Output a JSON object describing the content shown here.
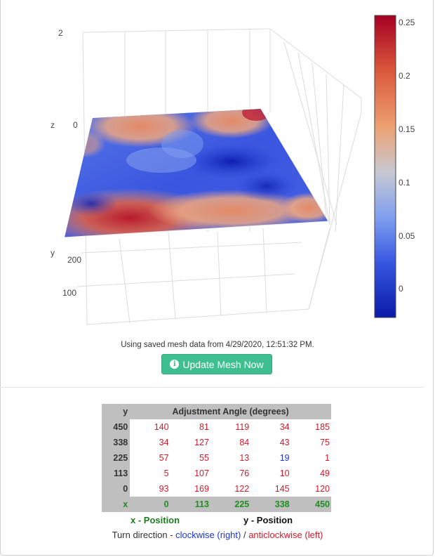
{
  "plot": {
    "z_axis_label": "z",
    "y_axis_label": "y",
    "z_ticks": [
      "2",
      "0"
    ],
    "y_ticks": [
      "200",
      "100"
    ],
    "colorbar_ticks": [
      "0.25",
      "0.2",
      "0.15",
      "0.1",
      "0.05",
      "0"
    ],
    "colorscale": [
      "#0a1ba8",
      "#3656e0",
      "#7f9ff0",
      "#c7c8d2",
      "#eda173",
      "#d9573a",
      "#a50024"
    ]
  },
  "status": {
    "message": "Using saved mesh data from 4/29/2020, 12:51:32 PM."
  },
  "update_button": {
    "label": "Update Mesh Now",
    "icon": "info-circle-icon"
  },
  "table": {
    "y_header": "y",
    "title": "Adjustment Angle (degrees)",
    "rows": [
      {
        "y": "450",
        "cells": [
          {
            "v": "140",
            "dir": "acw"
          },
          {
            "v": "81",
            "dir": "acw"
          },
          {
            "v": "119",
            "dir": "acw"
          },
          {
            "v": "34",
            "dir": "acw"
          },
          {
            "v": "185",
            "dir": "acw"
          }
        ]
      },
      {
        "y": "338",
        "cells": [
          {
            "v": "34",
            "dir": "acw"
          },
          {
            "v": "127",
            "dir": "acw"
          },
          {
            "v": "84",
            "dir": "acw"
          },
          {
            "v": "43",
            "dir": "acw"
          },
          {
            "v": "75",
            "dir": "acw"
          }
        ]
      },
      {
        "y": "225",
        "cells": [
          {
            "v": "57",
            "dir": "acw"
          },
          {
            "v": "55",
            "dir": "acw"
          },
          {
            "v": "13",
            "dir": "acw"
          },
          {
            "v": "19",
            "dir": "cw"
          },
          {
            "v": "1",
            "dir": "acw"
          }
        ]
      },
      {
        "y": "113",
        "cells": [
          {
            "v": "5",
            "dir": "acw"
          },
          {
            "v": "107",
            "dir": "acw"
          },
          {
            "v": "76",
            "dir": "acw"
          },
          {
            "v": "10",
            "dir": "acw"
          },
          {
            "v": "49",
            "dir": "acw"
          }
        ]
      },
      {
        "y": "0",
        "cells": [
          {
            "v": "93",
            "dir": "acw"
          },
          {
            "v": "169",
            "dir": "acw"
          },
          {
            "v": "122",
            "dir": "acw"
          },
          {
            "v": "145",
            "dir": "acw"
          },
          {
            "v": "120",
            "dir": "acw"
          }
        ]
      }
    ],
    "x_header": "x",
    "x_values": [
      "0",
      "113",
      "225",
      "338",
      "450"
    ]
  },
  "legend": {
    "x_position": "x - Position",
    "y_position": "y - Position",
    "turn_prefix": "Turn direction - ",
    "clockwise": "clockwise (right)",
    "separator": " / ",
    "anticlockwise": "anticlockwise (left)"
  },
  "colors": {
    "button": "#3fbf8f",
    "clockwise": "#1a35e0",
    "anticlockwise": "#d11b2a",
    "x_label": "#1e7a1e",
    "table_header_bg": "#bfbfbf"
  }
}
